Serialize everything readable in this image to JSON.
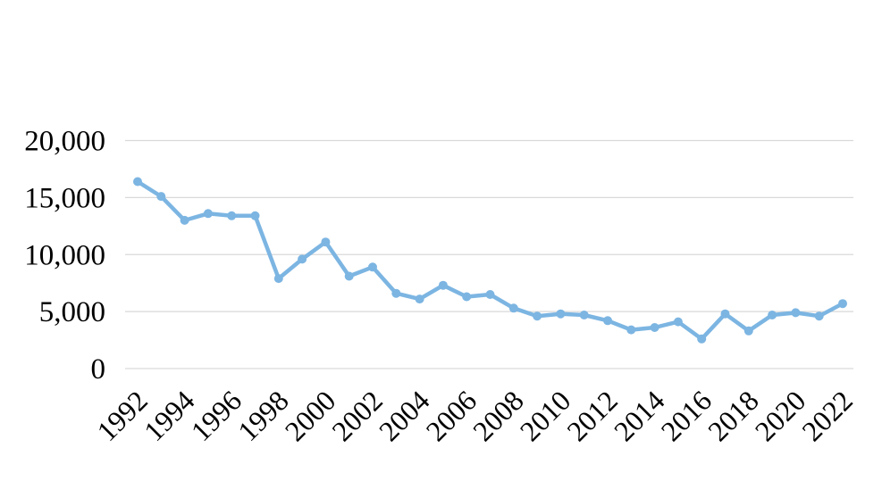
{
  "chart": {
    "background": "#FFFFFF",
    "axis_text_color": "#000000",
    "gridline_color": "#D9D9D9",
    "line_color": "#7CB5E2",
    "marker_color": "#7CB5E2"
  },
  "chart_data": {
    "type": "line",
    "title": "",
    "xlabel": "",
    "ylabel": "",
    "legend": "none",
    "grid": "horizontal",
    "ylim": [
      0,
      20000
    ],
    "y_ticks": [
      0,
      5000,
      10000,
      15000,
      20000
    ],
    "y_tick_labels": [
      "0",
      "5,000",
      "10,000",
      "15,000",
      "20,000"
    ],
    "x": [
      1992,
      1993,
      1994,
      1995,
      1996,
      1997,
      1998,
      1999,
      2000,
      2001,
      2002,
      2003,
      2004,
      2005,
      2006,
      2007,
      2008,
      2009,
      2010,
      2011,
      2012,
      2013,
      2014,
      2015,
      2016,
      2017,
      2018,
      2019,
      2020,
      2021,
      2022
    ],
    "values": [
      16400,
      15100,
      13000,
      13600,
      13400,
      13400,
      7900,
      9600,
      11100,
      8100,
      8900,
      6600,
      6100,
      7300,
      6300,
      6500,
      5300,
      4600,
      4800,
      4700,
      4200,
      3400,
      3600,
      4100,
      2600,
      4800,
      3300,
      4700,
      4900,
      4600,
      5700
    ],
    "x_tick_labels": [
      "1992",
      "1994",
      "1996",
      "1998",
      "2000",
      "2002",
      "2004",
      "2006",
      "2008",
      "2010",
      "2012",
      "2014",
      "2016",
      "2018",
      "2020",
      "2022"
    ],
    "x_tick_years": [
      1992,
      1994,
      1996,
      1998,
      2000,
      2002,
      2004,
      2006,
      2008,
      2010,
      2012,
      2014,
      2016,
      2018,
      2020,
      2022
    ]
  }
}
